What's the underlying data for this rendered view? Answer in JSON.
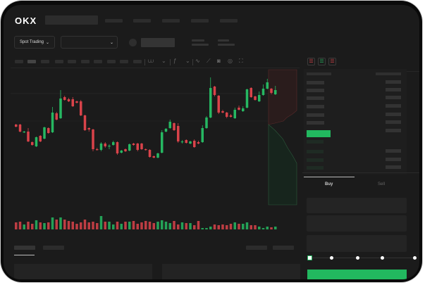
{
  "header": {
    "logo": "OKX",
    "logo_icon": "okx-logo"
  },
  "market_bar": {
    "spot_trading_label": "Spot Trading",
    "chevron_icon": "chevron-down-icon",
    "pair_dropdown_icon": "chevron-down-icon"
  },
  "chart_toolbar": {
    "icons": [
      "candle-type-icon",
      "indicator-icon",
      "line-tool-icon",
      "ruler-icon",
      "camera-icon",
      "settings-icon",
      "fullscreen-icon"
    ]
  },
  "orderbook": {
    "view_icons": [
      "orderbook-both-icon",
      "orderbook-bids-icon",
      "orderbook-asks-icon"
    ]
  },
  "trade_panel": {
    "tabs": [
      {
        "label": "Buy",
        "active": true
      },
      {
        "label": "Sell",
        "active": false
      }
    ],
    "slider_value_percent": 0
  },
  "colors": {
    "up": "#26b862",
    "down": "#d9434a",
    "background": "#1b1b1b",
    "accent": "#22b85f"
  },
  "chart_data": {
    "type": "candlestick",
    "candles": [
      [
        68,
        65,
        69,
        64
      ],
      [
        68,
        58,
        69,
        57
      ],
      [
        57,
        58,
        59,
        56
      ],
      [
        58,
        44,
        63,
        43
      ],
      [
        43,
        39,
        44,
        38
      ],
      [
        37,
        50,
        51,
        36
      ],
      [
        52,
        44,
        53,
        43
      ],
      [
        48,
        64,
        65,
        47
      ],
      [
        63,
        56,
        64,
        55
      ],
      [
        57,
        85,
        93,
        56
      ],
      [
        84,
        75,
        86,
        74
      ],
      [
        77,
        105,
        117,
        76
      ],
      [
        107,
        103,
        109,
        102
      ],
      [
        104,
        101,
        106,
        100
      ],
      [
        104,
        94,
        107,
        93
      ],
      [
        101,
        99,
        102,
        98
      ],
      [
        101,
        81,
        103,
        80
      ],
      [
        81,
        60,
        82,
        59
      ],
      [
        63,
        61,
        64,
        58
      ],
      [
        61,
        33,
        62,
        30
      ],
      [
        33,
        32,
        35,
        31
      ],
      [
        32,
        41,
        43,
        30
      ],
      [
        41,
        37,
        43,
        35
      ],
      [
        37,
        38,
        40,
        33
      ],
      [
        39,
        43,
        45,
        38
      ],
      [
        43,
        27,
        44,
        25
      ],
      [
        28,
        31,
        32,
        27
      ],
      [
        33,
        30,
        34,
        29
      ],
      [
        31,
        40,
        41,
        30
      ],
      [
        41,
        39,
        42,
        38
      ],
      [
        41,
        32,
        42,
        30
      ],
      [
        41,
        33,
        42,
        32
      ],
      [
        33,
        32,
        34,
        31
      ],
      [
        32,
        22,
        33,
        21
      ],
      [
        23,
        21,
        24,
        20
      ],
      [
        21,
        27,
        28,
        20
      ],
      [
        28,
        57,
        60,
        27
      ],
      [
        58,
        62,
        63,
        57
      ],
      [
        63,
        72,
        75,
        62
      ],
      [
        70,
        60,
        71,
        59
      ],
      [
        66,
        44,
        70,
        42
      ],
      [
        43,
        44,
        46,
        41
      ],
      [
        46,
        42,
        47,
        41
      ],
      [
        41,
        44,
        45,
        40
      ],
      [
        45,
        36,
        47,
        35
      ],
      [
        43,
        41,
        45,
        40
      ],
      [
        43,
        63,
        67,
        42
      ],
      [
        63,
        78,
        80,
        62
      ],
      [
        78,
        120,
        135,
        77
      ],
      [
        122,
        110,
        123,
        108
      ],
      [
        109,
        85,
        110,
        83
      ],
      [
        87,
        85,
        89,
        84
      ],
      [
        85,
        79,
        86,
        77
      ],
      [
        81,
        79,
        83,
        78
      ],
      [
        77,
        89,
        92,
        76
      ],
      [
        92,
        89,
        95,
        88
      ],
      [
        87,
        91,
        94,
        86
      ],
      [
        92,
        118,
        119,
        91
      ],
      [
        120,
        107,
        121,
        106
      ],
      [
        108,
        103,
        109,
        102
      ],
      [
        101,
        110,
        115,
        100
      ],
      [
        110,
        119,
        125,
        109
      ],
      [
        119,
        128,
        133,
        118
      ],
      [
        119,
        113,
        120,
        111
      ],
      [
        111,
        117,
        123,
        110
      ]
    ],
    "volumes": [
      10,
      11,
      7,
      11,
      8,
      13,
      10,
      9,
      10,
      17,
      14,
      17,
      14,
      12,
      11,
      8,
      10,
      14,
      10,
      11,
      9,
      19,
      11,
      11,
      7,
      11,
      8,
      11,
      11,
      12,
      8,
      10,
      12,
      11,
      9,
      11,
      13,
      11,
      9,
      12,
      7,
      10,
      9,
      9,
      6,
      12,
      2,
      2,
      4,
      7,
      6,
      7,
      6,
      8,
      10,
      8,
      8,
      10,
      6,
      6,
      4,
      2,
      4,
      3,
      4
    ]
  }
}
